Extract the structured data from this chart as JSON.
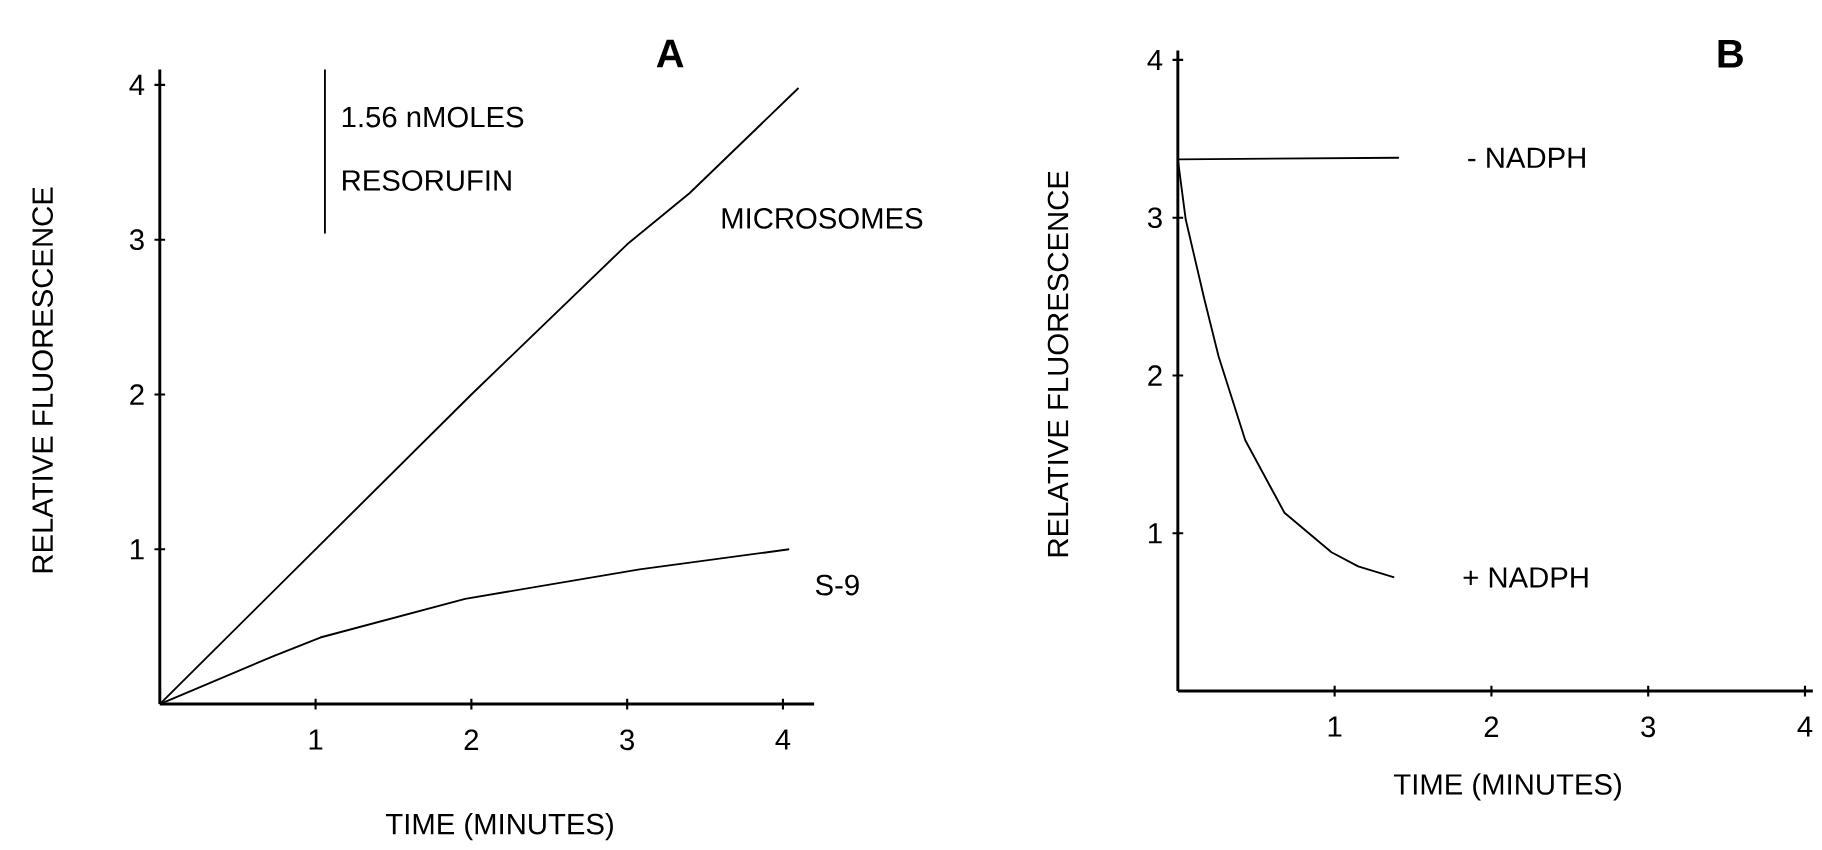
{
  "chart_data": [
    {
      "type": "line",
      "title": "A",
      "xlabel": "TIME (MINUTES)",
      "ylabel": "RELATIVE  FLUORESCENCE",
      "xlim": [
        0,
        4.2
      ],
      "ylim": [
        0,
        4.1
      ],
      "xticks": [
        1,
        2,
        3,
        4
      ],
      "yticks": [
        1,
        2,
        3,
        4
      ],
      "marker": "none",
      "line_style": "solid",
      "annotations": [
        "1.56 nMOLES",
        "RESORUFIN"
      ],
      "series": [
        {
          "name": "MICROSOMES",
          "color": "#000000",
          "x": [
            0,
            1,
            2,
            3,
            3.4,
            4.1
          ],
          "values": [
            0,
            1.0,
            2.0,
            2.97,
            3.3,
            3.98
          ]
        },
        {
          "name": "S-9",
          "color": "#000000",
          "x": [
            0,
            0.73,
            1.03,
            1.96,
            3.08,
            4.04
          ],
          "values": [
            0,
            0.31,
            0.43,
            0.68,
            0.87,
            1.0
          ]
        },
        {
          "type": "line",
          "marker": "none",
          "color": "#000000",
          "x": [
            1.06,
            1.06
          ],
          "values": [
            3.04,
            4.1
          ]
        }
      ]
    },
    {
      "type": "line",
      "title": "B",
      "xlabel": "TIME (MINUTES)",
      "ylabel": "RELATIVE  FLUORESCENCE",
      "xlim": [
        0,
        4.05
      ],
      "ylim": [
        0,
        4.06
      ],
      "xticks": [
        1,
        2,
        3,
        4
      ],
      "yticks": [
        1,
        2,
        3,
        4
      ],
      "marker": "none",
      "line_style": "solid",
      "series": [
        {
          "name": "- NADPH",
          "color": "#000000",
          "x": [
            0,
            1.41
          ],
          "values": [
            3.37,
            3.38
          ]
        },
        {
          "name": "+ NADPH",
          "color": "#000000",
          "x": [
            0,
            0.05,
            0.17,
            0.26,
            0.43,
            0.68,
            0.98,
            1.15,
            1.38
          ],
          "values": [
            3.37,
            2.99,
            2.48,
            2.12,
            1.59,
            1.13,
            0.88,
            0.79,
            0.72
          ]
        }
      ]
    }
  ]
}
